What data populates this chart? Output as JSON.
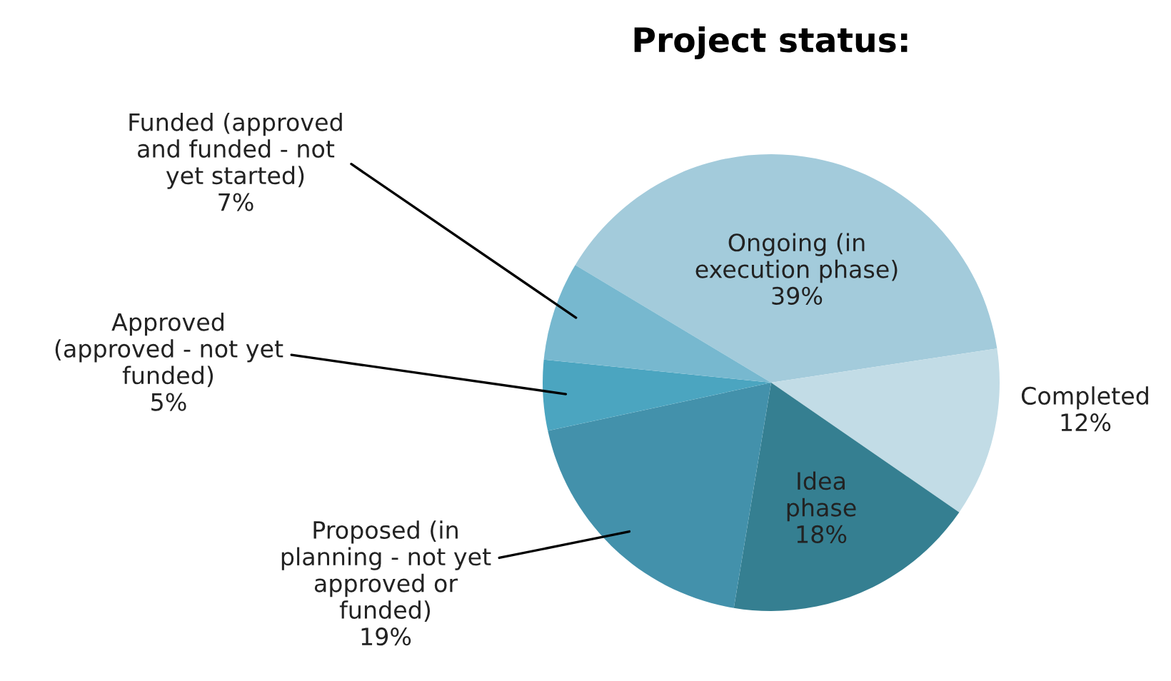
{
  "chart_data": {
    "type": "pie",
    "title": "Project status:",
    "categories": [
      "Ongoing (in\nexecution phase)",
      "Completed",
      "Idea\nphase",
      "Proposed (in\nplanning - not yet\napproved or\nfunded)",
      "Approved\n(approved - not yet\nfunded)",
      "Funded (approved\nand funded - not\nyet started)"
    ],
    "values": [
      39,
      12,
      18,
      19,
      5,
      7
    ],
    "colors": [
      "#a3cbdb",
      "#c2dce6",
      "#357f91",
      "#4391ab",
      "#4ba5c0",
      "#77b8cf"
    ],
    "value_labels": [
      "39%",
      "12%",
      "18%",
      "19%",
      "5%",
      "7%"
    ],
    "legend": false
  }
}
